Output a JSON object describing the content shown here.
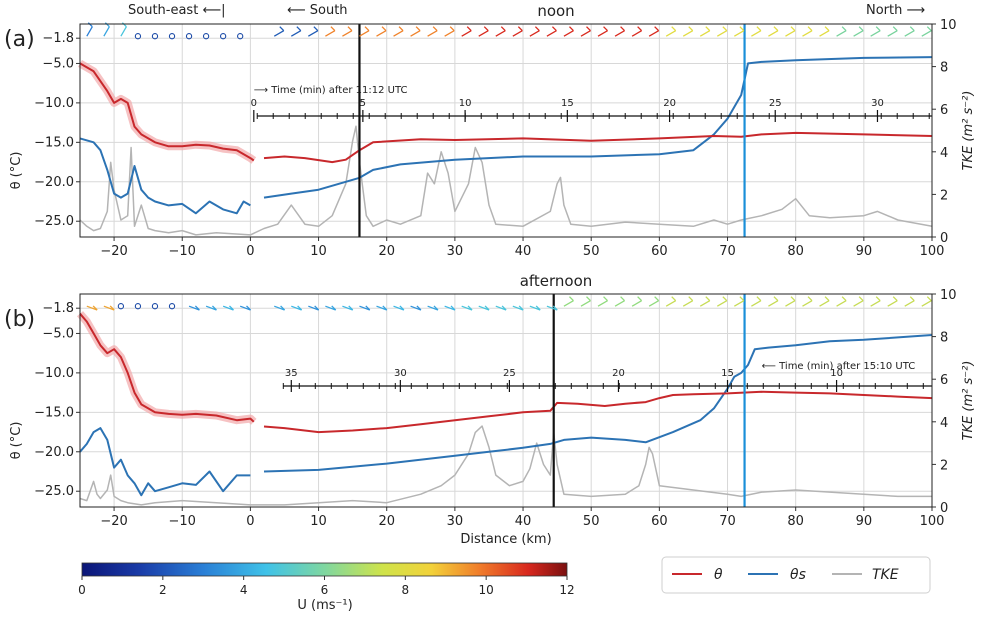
{
  "figure": {
    "panel_a_label": "(a)",
    "panel_b_label": "(b)",
    "dir_southeast": "South-east ⟵|",
    "dir_south": "⟵ South",
    "dir_north": "North ⟶",
    "legend": {
      "theta": "θ",
      "theta_s": "θs",
      "tke": "TKE"
    },
    "colorbar": {
      "label": "U (ms⁻¹)",
      "ticks": [
        "0",
        "2",
        "4",
        "6",
        "8",
        "10",
        "12"
      ],
      "range": [
        0,
        12
      ]
    },
    "colors": {
      "theta": "#c8282c",
      "theta_s": "#2c73b4",
      "tke": "#b4b4b4",
      "grid": "#d8d8d8",
      "marker": "#1a8fd8"
    }
  },
  "chart_data": [
    {
      "type": "line",
      "title": "noon",
      "xlabel": "",
      "ylabel": "θ (°C)",
      "y2label": "TKE (m² s⁻²)",
      "xlim": [
        -25,
        100
      ],
      "ylim": [
        -27,
        0
      ],
      "y2lim": [
        0,
        10
      ],
      "xticks": [
        "−20",
        "−10",
        "0",
        "10",
        "20",
        "30",
        "40",
        "50",
        "60",
        "70",
        "80",
        "90",
        "100"
      ],
      "yticks": [
        "−1.8",
        "−5.0",
        "−10.0",
        "−15.0",
        "−20.0",
        "−25.0"
      ],
      "y2ticks": [
        "0",
        "2",
        "4",
        "6",
        "8",
        "10"
      ],
      "black_line_x": 16,
      "blue_line_x": 72.5,
      "time_axis": {
        "label": "⟶ Time (min) after 11:12 UTC",
        "ticks": [
          "0",
          "5",
          "10",
          "15",
          "20",
          "25",
          "30"
        ],
        "tick_x": [
          0.5,
          16.5,
          31.5,
          46.5,
          61.5,
          77,
          92
        ]
      },
      "series": [
        {
          "name": "θ",
          "x": [
            -25,
            -23,
            -21,
            -20,
            -19,
            -18,
            -17,
            -16,
            -14,
            -12,
            -10,
            -8,
            -6,
            -4,
            -2,
            0,
            0.5
          ],
          "values": [
            -5,
            -6,
            -8.5,
            -10,
            -9.5,
            -10,
            -13,
            -14,
            -15,
            -15.5,
            -15.5,
            -15.3,
            -15.4,
            -15.8,
            -16,
            -17,
            -17.3
          ]
        },
        {
          "name": "θ",
          "x": [
            2,
            5,
            8,
            12,
            14,
            16,
            18,
            25,
            30,
            40,
            50,
            60,
            68,
            72,
            75,
            80,
            90,
            100
          ],
          "values": [
            -17,
            -16.8,
            -17,
            -17.5,
            -17.2,
            -16,
            -15,
            -14.6,
            -14.7,
            -14.5,
            -14.8,
            -14.5,
            -14.2,
            -14.3,
            -14.0,
            -13.8,
            -14,
            -14.2
          ]
        },
        {
          "name": "θs",
          "x": [
            -25,
            -23,
            -22,
            -21,
            -20,
            -19,
            -18,
            -17,
            -16,
            -15,
            -14,
            -12,
            -10,
            -8,
            -6,
            -4,
            -2,
            -1,
            0
          ],
          "values": [
            -14.5,
            -15,
            -16,
            -18.5,
            -21.5,
            -22,
            -21.5,
            -18,
            -21,
            -22,
            -22.5,
            -23,
            -22.8,
            -24,
            -22.5,
            -23.5,
            -24,
            -22.5,
            -23
          ]
        },
        {
          "name": "θs",
          "x": [
            2,
            6,
            10,
            14,
            16,
            18,
            22,
            30,
            40,
            50,
            60,
            65,
            68,
            70,
            72,
            73,
            75,
            80,
            90,
            100
          ],
          "values": [
            -22,
            -21.5,
            -21,
            -20,
            -19.5,
            -18.5,
            -17.8,
            -17.2,
            -16.8,
            -16.8,
            -16.5,
            -16,
            -14,
            -12,
            -9,
            -5,
            -4.8,
            -4.6,
            -4.3,
            -4.2
          ]
        },
        {
          "name": "TKE",
          "x": [
            -25,
            -24,
            -23,
            -22,
            -21,
            -20.5,
            -20,
            -19,
            -18,
            -17.5,
            -17,
            -16,
            -15,
            -14,
            -12,
            -10,
            -8,
            -5,
            0,
            2,
            4,
            6,
            8,
            10,
            12,
            14,
            15,
            15.5,
            16,
            17,
            18,
            20,
            22,
            25,
            26,
            27,
            28,
            29,
            30,
            32,
            33,
            34,
            35,
            36,
            40,
            44,
            45,
            45.5,
            46,
            47,
            50,
            55,
            60,
            65,
            68,
            70,
            72,
            75,
            78,
            80,
            82,
            85,
            90,
            92,
            95,
            100
          ],
          "values": [
            0.8,
            0.5,
            0.3,
            0.4,
            1.2,
            3.5,
            2.2,
            0.8,
            1.0,
            4.2,
            0.5,
            1.5,
            0.4,
            0.3,
            0.2,
            0.3,
            0.1,
            0.2,
            0.1,
            0.4,
            0.6,
            1.5,
            0.6,
            0.5,
            1.0,
            2.5,
            4.5,
            5.2,
            3.5,
            1.0,
            0.5,
            0.8,
            0.6,
            1.0,
            3.0,
            2.5,
            4.0,
            3.0,
            1.2,
            2.5,
            4.2,
            3.5,
            1.5,
            0.6,
            0.5,
            1.2,
            2.5,
            2.8,
            1.5,
            0.6,
            0.5,
            0.7,
            0.6,
            0.5,
            0.8,
            0.6,
            0.8,
            1.0,
            1.3,
            1.8,
            1.0,
            0.9,
            1.0,
            1.2,
            0.8,
            0.5
          ]
        }
      ]
    },
    {
      "type": "line",
      "title": "afternoon",
      "xlabel": "Distance (km)",
      "ylabel": "θ (°C)",
      "y2label": "TKE (m² s⁻²)",
      "xlim": [
        -25,
        100
      ],
      "ylim": [
        -27,
        0
      ],
      "y2lim": [
        0,
        10
      ],
      "xticks": [
        "−20",
        "−10",
        "0",
        "10",
        "20",
        "30",
        "40",
        "50",
        "60",
        "70",
        "80",
        "90",
        "100"
      ],
      "yticks": [
        "−1.8",
        "−5.0",
        "−10.0",
        "−15.0",
        "−20.0",
        "−25.0"
      ],
      "y2ticks": [
        "0",
        "2",
        "4",
        "6",
        "8",
        "10"
      ],
      "black_line_x": 44.5,
      "blue_line_x": 72.5,
      "time_axis": {
        "label": "⟵ Time (min) after 15:10 UTC",
        "ticks": [
          "35",
          "30",
          "25",
          "20",
          "15",
          "10"
        ],
        "tick_x": [
          6,
          22,
          38,
          54,
          70,
          86
        ]
      },
      "series": [
        {
          "name": "θ",
          "x": [
            -25,
            -24,
            -23,
            -22,
            -21,
            -20,
            -19,
            -18,
            -17,
            -16,
            -14,
            -12,
            -10,
            -8,
            -5,
            -2,
            0,
            0.5
          ],
          "values": [
            -2.5,
            -3.5,
            -5,
            -6.5,
            -7.5,
            -7,
            -8,
            -10,
            -12.5,
            -14,
            -15,
            -15.2,
            -15.3,
            -15.2,
            -15.4,
            -16,
            -15.8,
            -16.2
          ]
        },
        {
          "name": "θ",
          "x": [
            2,
            5,
            10,
            15,
            20,
            25,
            30,
            35,
            40,
            44,
            45,
            48,
            52,
            55,
            58,
            60,
            62,
            65,
            70,
            75,
            80,
            85,
            90,
            95,
            100
          ],
          "values": [
            -16.8,
            -17,
            -17.5,
            -17.3,
            -17,
            -16.5,
            -16,
            -15.5,
            -15,
            -14.8,
            -13.8,
            -13.9,
            -14.2,
            -13.9,
            -13.7,
            -13.2,
            -12.8,
            -12.7,
            -12.6,
            -12.4,
            -12.5,
            -12.6,
            -12.8,
            -13,
            -13.2
          ]
        },
        {
          "name": "θs",
          "x": [
            -25,
            -24,
            -23,
            -22,
            -21,
            -20,
            -19,
            -18,
            -17,
            -16,
            -15,
            -14,
            -12,
            -10,
            -8,
            -6,
            -4,
            -2,
            0
          ],
          "values": [
            -20,
            -19,
            -17.5,
            -17,
            -18.5,
            -22,
            -21,
            -23,
            -24,
            -25.5,
            -24,
            -25,
            -24.5,
            -24,
            -24.2,
            -22.5,
            -25,
            -23,
            -23
          ]
        },
        {
          "name": "θs",
          "x": [
            2,
            10,
            20,
            30,
            35,
            40,
            44,
            46,
            50,
            55,
            58,
            62,
            66,
            68,
            70,
            71,
            72,
            73,
            74,
            76,
            80,
            85,
            90,
            100
          ],
          "values": [
            -22.5,
            -22.3,
            -21.5,
            -20.5,
            -20,
            -19.5,
            -19,
            -18.5,
            -18.2,
            -18.5,
            -18.8,
            -17.5,
            -16,
            -14.5,
            -12,
            -10.5,
            -10,
            -9,
            -7,
            -6.8,
            -6.5,
            -6,
            -5.8,
            -5.2
          ]
        },
        {
          "name": "TKE",
          "x": [
            -25,
            -24,
            -23,
            -22.5,
            -22,
            -21,
            -20.5,
            -20,
            -19,
            -18,
            -16,
            -14,
            -10,
            -5,
            0,
            5,
            10,
            15,
            20,
            25,
            28,
            30,
            32,
            33,
            34,
            35,
            36,
            38,
            40,
            41,
            42,
            43,
            44,
            44.5,
            45,
            46,
            50,
            55,
            57,
            58,
            58.5,
            59,
            60,
            65,
            70,
            72,
            75,
            80,
            85,
            90,
            95,
            100
          ],
          "values": [
            0.4,
            0.3,
            1.2,
            0.6,
            0.4,
            0.8,
            1.5,
            0.5,
            0.3,
            0.2,
            0.1,
            0.2,
            0.3,
            0.2,
            0.1,
            0.1,
            0.2,
            0.3,
            0.2,
            0.6,
            1.0,
            1.5,
            2.5,
            3.5,
            3.8,
            2.8,
            1.5,
            1.0,
            1.2,
            1.8,
            3.0,
            2.0,
            1.5,
            3.5,
            2.0,
            0.6,
            0.5,
            0.6,
            1.0,
            2.0,
            2.8,
            2.5,
            1.0,
            0.8,
            0.6,
            0.5,
            0.7,
            0.8,
            0.7,
            0.6,
            0.5,
            0.5
          ]
        }
      ]
    }
  ]
}
